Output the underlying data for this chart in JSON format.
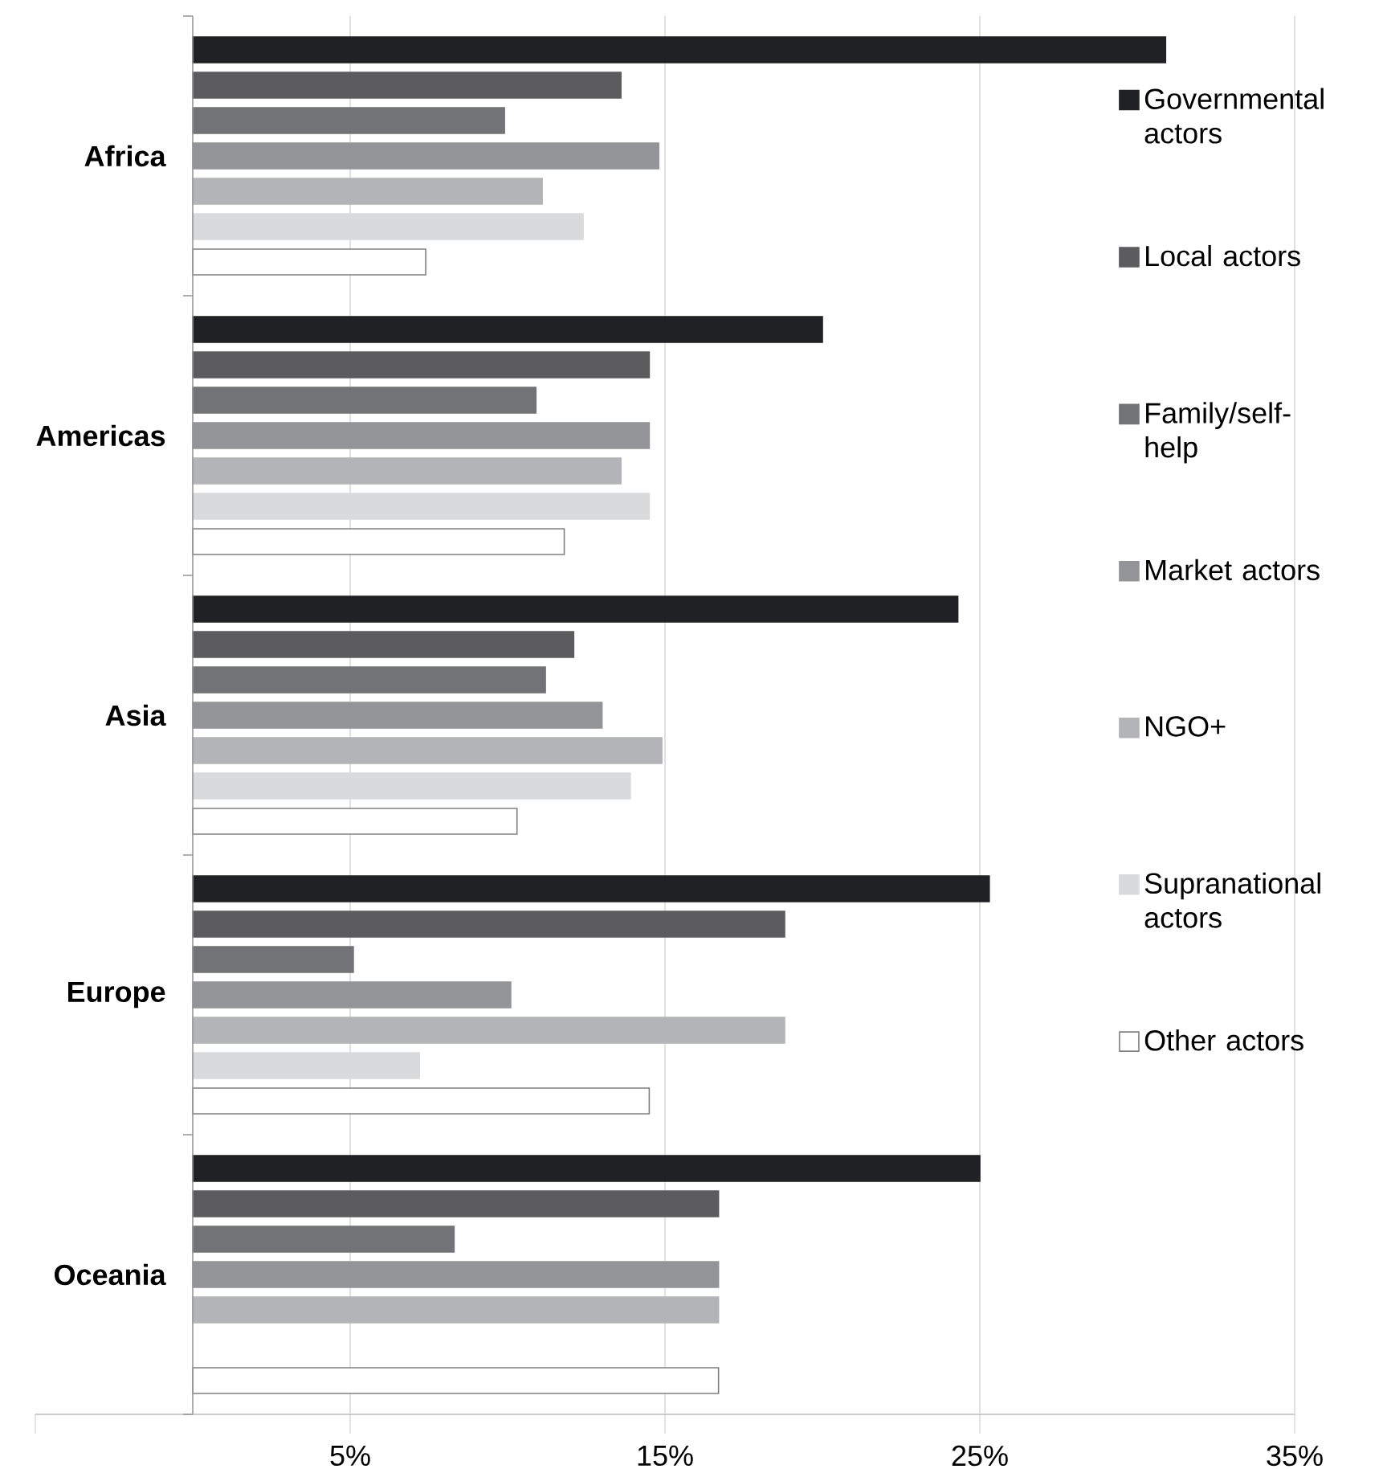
{
  "chart_data": {
    "type": "bar",
    "orientation": "horizontal",
    "categories": [
      "Africa",
      "Americas",
      "Asia",
      "Europe",
      "Oceania"
    ],
    "series": [
      {
        "name": "Governmental actors",
        "color": "#202124",
        "values": [
          30.9,
          20.0,
          24.3,
          25.3,
          25.0
        ]
      },
      {
        "name": "Local actors",
        "color": "#5c5c5e",
        "values": [
          13.6,
          14.5,
          12.1,
          18.8,
          16.7
        ]
      },
      {
        "name": "Family/self-help",
        "color": "#727376",
        "values": [
          9.9,
          10.9,
          11.2,
          5.1,
          8.3
        ]
      },
      {
        "name": "Market actors",
        "color": "#939497",
        "values": [
          14.8,
          14.5,
          13.0,
          10.1,
          16.7
        ]
      },
      {
        "name": "NGO+",
        "color": "#b3b4b7",
        "values": [
          11.1,
          13.6,
          14.9,
          18.8,
          16.7
        ]
      },
      {
        "name": "Supranational actors",
        "color": "#d9dadb",
        "values": [
          12.4,
          14.5,
          13.9,
          7.2,
          null
        ]
      },
      {
        "name": "Other actors",
        "color": "#ffffff",
        "values": [
          7.4,
          11.8,
          10.3,
          14.5,
          16.7
        ]
      }
    ],
    "xlim": [
      -5,
      35
    ],
    "xticks": [
      {
        "value": -5,
        "label": null
      },
      {
        "value": 5,
        "label": "5%"
      },
      {
        "value": 15,
        "label": "15%"
      },
      {
        "value": 25,
        "label": "25%"
      },
      {
        "value": 35,
        "label": "35%"
      }
    ],
    "grid": "x",
    "legend": "right"
  }
}
